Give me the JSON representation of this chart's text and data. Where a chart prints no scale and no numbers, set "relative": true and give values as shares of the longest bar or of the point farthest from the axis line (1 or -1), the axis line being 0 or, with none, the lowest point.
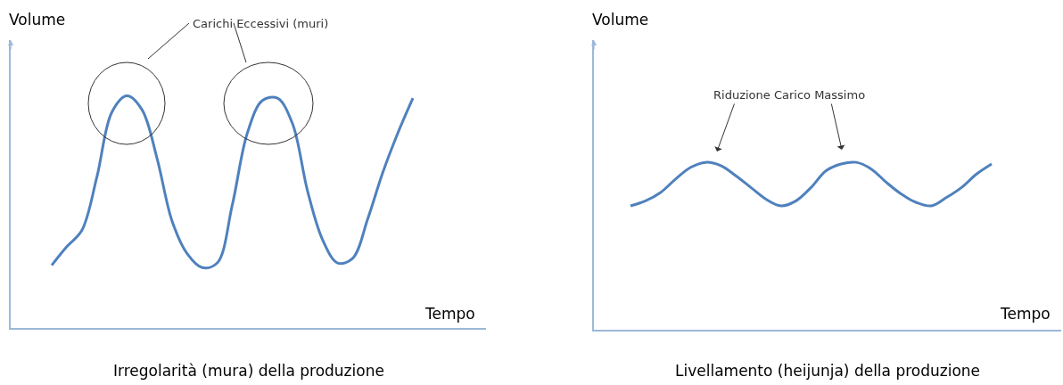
{
  "chart_data": [
    {
      "type": "line",
      "title": "Irregolarità (mura) della produzione",
      "xlabel": "Tempo",
      "ylabel": "Volume",
      "annotations": [
        "Carichi Eccessivi (muri)"
      ],
      "relative": true,
      "marker": "none",
      "line_style": "solid",
      "categories": [
        null,
        null,
        null,
        null,
        null,
        null,
        null,
        null,
        null,
        null,
        null,
        null,
        null,
        null,
        null,
        null,
        null,
        null,
        null,
        null,
        null,
        null,
        null,
        null,
        null
      ],
      "series": [
        {
          "color": "#4f81bd",
          "values": [
            0.27,
            0.35,
            0.42,
            0.65,
            0.93,
            1.0,
            0.94,
            0.73,
            0.46,
            0.32,
            0.26,
            0.28,
            0.53,
            0.84,
            0.98,
            0.99,
            0.88,
            0.59,
            0.38,
            0.28,
            0.3,
            0.47,
            0.67,
            0.84,
            0.99
          ]
        }
      ]
    },
    {
      "type": "line",
      "title": "Livellamento (heijunja) della produzione",
      "xlabel": "Tempo",
      "ylabel": "Volume",
      "annotations": [
        "Riduzione Carico Massimo"
      ],
      "relative": true,
      "marker": "none",
      "line_style": "solid",
      "categories": [
        null,
        null,
        null,
        null,
        null,
        null,
        null,
        null,
        null,
        null,
        null,
        null,
        null,
        null,
        null,
        null,
        null,
        null,
        null,
        null,
        null,
        null,
        null,
        null,
        null
      ],
      "series": [
        {
          "color": "#4f81bd",
          "values": [
            0.74,
            0.77,
            0.82,
            0.9,
            0.97,
            1.0,
            0.98,
            0.92,
            0.85,
            0.78,
            0.74,
            0.77,
            0.85,
            0.95,
            0.99,
            1.0,
            0.96,
            0.88,
            0.81,
            0.76,
            0.74,
            0.79,
            0.85,
            0.93,
            0.99
          ]
        }
      ]
    }
  ]
}
